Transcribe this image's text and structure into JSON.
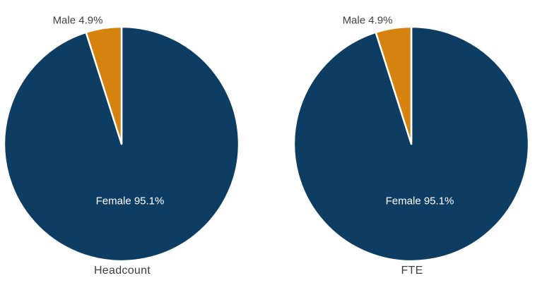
{
  "colors": {
    "female": "#0E3D63",
    "male": "#D6820F",
    "slice_border": "#FFFFFF",
    "label_text": "#3F3F3F",
    "inside_label_text": "#FFFFFF",
    "background": "#FFFFFF"
  },
  "chart_data": [
    {
      "type": "pie",
      "title": "Headcount",
      "start_angle_deg": 0,
      "direction": "clockwise",
      "legend": "none",
      "label_layout": {
        "female": "inside-slice",
        "male": "outside-top-left"
      },
      "slices": [
        {
          "label": "Female",
          "value": 95.1,
          "callout": "Female 95.1%",
          "color_key": "female"
        },
        {
          "label": "Male",
          "value": 4.9,
          "callout": "Male 4.9%",
          "color_key": "male"
        }
      ]
    },
    {
      "type": "pie",
      "title": "FTE",
      "start_angle_deg": 0,
      "direction": "clockwise",
      "legend": "none",
      "label_layout": {
        "female": "inside-slice",
        "male": "outside-top-left"
      },
      "slices": [
        {
          "label": "Female",
          "value": 95.1,
          "callout": "Female 95.1%",
          "color_key": "female"
        },
        {
          "label": "Male",
          "value": 4.9,
          "callout": "Male 4.9%",
          "color_key": "male"
        }
      ]
    }
  ]
}
